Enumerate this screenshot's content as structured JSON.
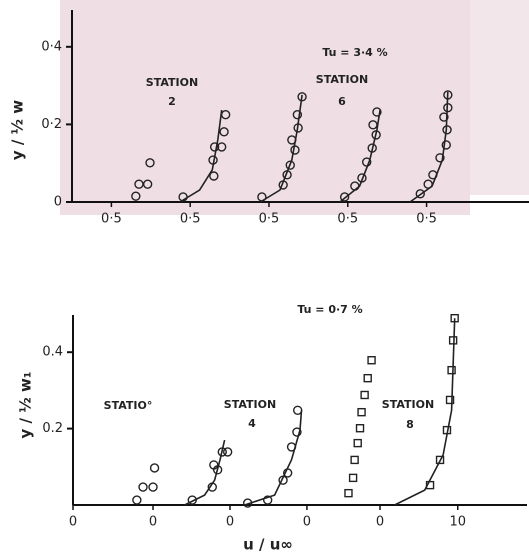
{
  "chart_data": [
    {
      "type": "scatter",
      "y_label": "y / ½ w",
      "annotations": [
        "Tu = 3·4 %",
        "STATION",
        "2",
        "STATION",
        "6"
      ],
      "xlim": [
        0,
        5.8
      ],
      "ylim": [
        0,
        0.5
      ],
      "xticks": [
        {
          "value": 0.5,
          "label": "0·5"
        },
        {
          "value": 1.5,
          "label": "0·5"
        },
        {
          "value": 2.5,
          "label": "0·5"
        },
        {
          "value": 3.5,
          "label": "0·5"
        },
        {
          "value": 4.5,
          "label": "0·5"
        }
      ],
      "yticks": [
        0,
        {
          "value": 0.2,
          "label": "0·2"
        },
        {
          "value": 0.4,
          "label": "0·4"
        }
      ],
      "series": [
        {
          "marker": "circle",
          "color": "#222",
          "x": [
            0.81,
            0.85,
            0.96,
            0.99
          ],
          "values": [
            0.015,
            0.046,
            0.046,
            0.101
          ]
        },
        {
          "marker": "circle",
          "color": "#222",
          "x": [
            1.41,
            1.8,
            1.79,
            1.9,
            1.81,
            1.93,
            1.95
          ],
          "values": [
            0.013,
            0.067,
            0.108,
            0.142,
            0.142,
            0.181,
            0.225
          ]
        },
        {
          "marker": "line",
          "color": "#222",
          "x": [
            1.37,
            1.62,
            1.78,
            1.85,
            1.9
          ],
          "values": [
            0,
            0.031,
            0.083,
            0.16,
            0.237
          ]
        },
        {
          "marker": "circle",
          "color": "#222",
          "x": [
            2.41,
            2.68,
            2.73,
            2.77,
            2.83,
            2.79,
            2.87,
            2.86,
            2.92
          ],
          "values": [
            0.013,
            0.044,
            0.07,
            0.095,
            0.134,
            0.16,
            0.191,
            0.225,
            0.271
          ]
        },
        {
          "marker": "line",
          "color": "#222",
          "x": [
            2.39,
            2.64,
            2.79,
            2.86,
            2.92
          ],
          "values": [
            0,
            0.031,
            0.108,
            0.186,
            0.276
          ]
        },
        {
          "marker": "circle",
          "color": "#222",
          "x": [
            3.46,
            3.59,
            3.68,
            3.74,
            3.81,
            3.86,
            3.82,
            3.87
          ],
          "values": [
            0.013,
            0.041,
            0.062,
            0.103,
            0.139,
            0.173,
            0.199,
            0.232
          ]
        },
        {
          "marker": "line",
          "color": "#222",
          "x": [
            3.4,
            3.65,
            3.78,
            3.87,
            3.91
          ],
          "values": [
            0,
            0.041,
            0.108,
            0.186,
            0.237
          ]
        },
        {
          "marker": "circle",
          "color": "#222",
          "x": [
            4.42,
            4.52,
            4.58,
            4.67,
            4.75,
            4.76,
            4.72,
            4.77,
            4.77
          ],
          "values": [
            0.021,
            0.046,
            0.07,
            0.114,
            0.147,
            0.186,
            0.219,
            0.243,
            0.276
          ]
        },
        {
          "marker": "line",
          "color": "#222",
          "x": [
            4.29,
            4.57,
            4.7,
            4.75,
            4.77
          ],
          "values": [
            0,
            0.041,
            0.108,
            0.186,
            0.284
          ]
        }
      ]
    },
    {
      "type": "scatter",
      "x_label": "u / u∞",
      "y_label": "y / ½ w₁",
      "annotations": [
        "Tu = 0·7 %",
        "STATIO°",
        "STATION",
        "4",
        "STATION",
        "8"
      ],
      "xlim": [
        0,
        59
      ],
      "ylim": [
        0,
        0.5
      ],
      "xticks": [
        0,
        {
          "value": 10.4,
          "label": "0"
        },
        {
          "value": 20.4,
          "label": "0"
        },
        {
          "value": 30.4,
          "label": "0"
        },
        {
          "value": 39.9,
          "label": "0"
        },
        {
          "value": 50,
          "label": "10"
        }
      ],
      "yticks": [
        0.2,
        0.4
      ],
      "series": [
        {
          "marker": "circle",
          "color": "#222",
          "x": [
            8.3,
            9.1,
            10.4,
            10.6
          ],
          "values": [
            0.013,
            0.047,
            0.047,
            0.097
          ]
        },
        {
          "marker": "circle",
          "color": "#222",
          "x": [
            15.5,
            18.1,
            18.8,
            19.4,
            20.1,
            18.3
          ],
          "values": [
            0.013,
            0.047,
            0.092,
            0.139,
            0.139,
            0.105
          ]
        },
        {
          "marker": "line",
          "color": "#222",
          "x": [
            14.5,
            17.1,
            18.4,
            19.1,
            19.7
          ],
          "values": [
            0,
            0.026,
            0.065,
            0.118,
            0.17
          ]
        },
        {
          "marker": "circle",
          "color": "#222",
          "x": [
            22.7,
            25.3,
            27.3,
            27.9,
            28.4,
            29.1,
            29.2
          ],
          "values": [
            0.005,
            0.013,
            0.065,
            0.084,
            0.152,
            0.191,
            0.248
          ]
        },
        {
          "marker": "line",
          "color": "#222",
          "x": [
            22.3,
            26.2,
            28.4,
            29.5,
            29.7
          ],
          "values": [
            0,
            0.026,
            0.118,
            0.196,
            0.248
          ]
        },
        {
          "marker": "square",
          "color": "#222",
          "x": [
            35.8,
            36.4,
            36.6,
            37.0,
            37.3,
            37.5,
            37.9,
            38.3,
            38.8
          ],
          "values": [
            0.031,
            0.071,
            0.118,
            0.162,
            0.201,
            0.243,
            0.288,
            0.332,
            0.379
          ]
        },
        {
          "marker": "square",
          "color": "#222",
          "x": [
            46.4,
            47.7,
            48.6,
            49.0,
            49.2,
            49.4,
            49.6
          ],
          "values": [
            0.052,
            0.118,
            0.196,
            0.275,
            0.353,
            0.431,
            0.489
          ]
        },
        {
          "marker": "line",
          "color": "#222",
          "x": [
            41.8,
            45.7,
            48.1,
            49.2,
            49.6
          ],
          "values": [
            0,
            0.039,
            0.131,
            0.248,
            0.489
          ]
        }
      ]
    }
  ]
}
